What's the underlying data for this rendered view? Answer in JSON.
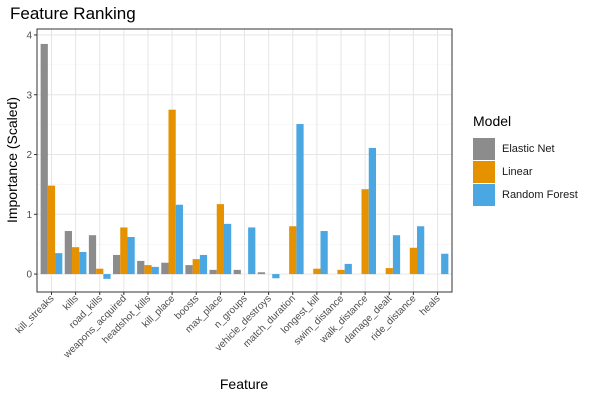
{
  "chart_data": {
    "type": "bar",
    "title": "Feature Ranking",
    "xlabel": "Feature",
    "ylabel": "Importance (Scaled)",
    "ylim": [
      -0.3,
      4.1
    ],
    "yticks": [
      0,
      1,
      2,
      3,
      4
    ],
    "grid": true,
    "legend_title": "Model",
    "legend_position": "right",
    "categories": [
      "kill_streaks",
      "kills",
      "road_kills",
      "weapons_acquired",
      "headshot_kills",
      "kill_place",
      "boosts",
      "max_place",
      "n_groups",
      "vehicle_destroys",
      "match_duration",
      "longest_kill",
      "swim_distance",
      "walk_distance",
      "damage_dealt",
      "ride_distance",
      "heals"
    ],
    "series": [
      {
        "name": "Elastic Net",
        "color": "#8c8c8c",
        "values": [
          3.85,
          0.72,
          0.65,
          0.32,
          0.22,
          0.19,
          0.15,
          0.07,
          0.07,
          0.03,
          0.0,
          0.0,
          0.0,
          0.0,
          0.0,
          0.0,
          0.0
        ]
      },
      {
        "name": "Linear",
        "color": "#e69100",
        "values": [
          1.48,
          0.45,
          0.09,
          0.78,
          0.15,
          2.75,
          0.25,
          1.17,
          0.0,
          0.0,
          0.8,
          0.09,
          0.07,
          1.42,
          0.1,
          0.44,
          0.0
        ]
      },
      {
        "name": "Random Forest",
        "color": "#4aa7e2",
        "values": [
          0.35,
          0.37,
          -0.08,
          0.62,
          0.12,
          1.16,
          0.32,
          0.84,
          0.78,
          -0.07,
          2.51,
          0.72,
          0.17,
          2.11,
          0.65,
          0.8,
          0.34
        ]
      }
    ]
  }
}
